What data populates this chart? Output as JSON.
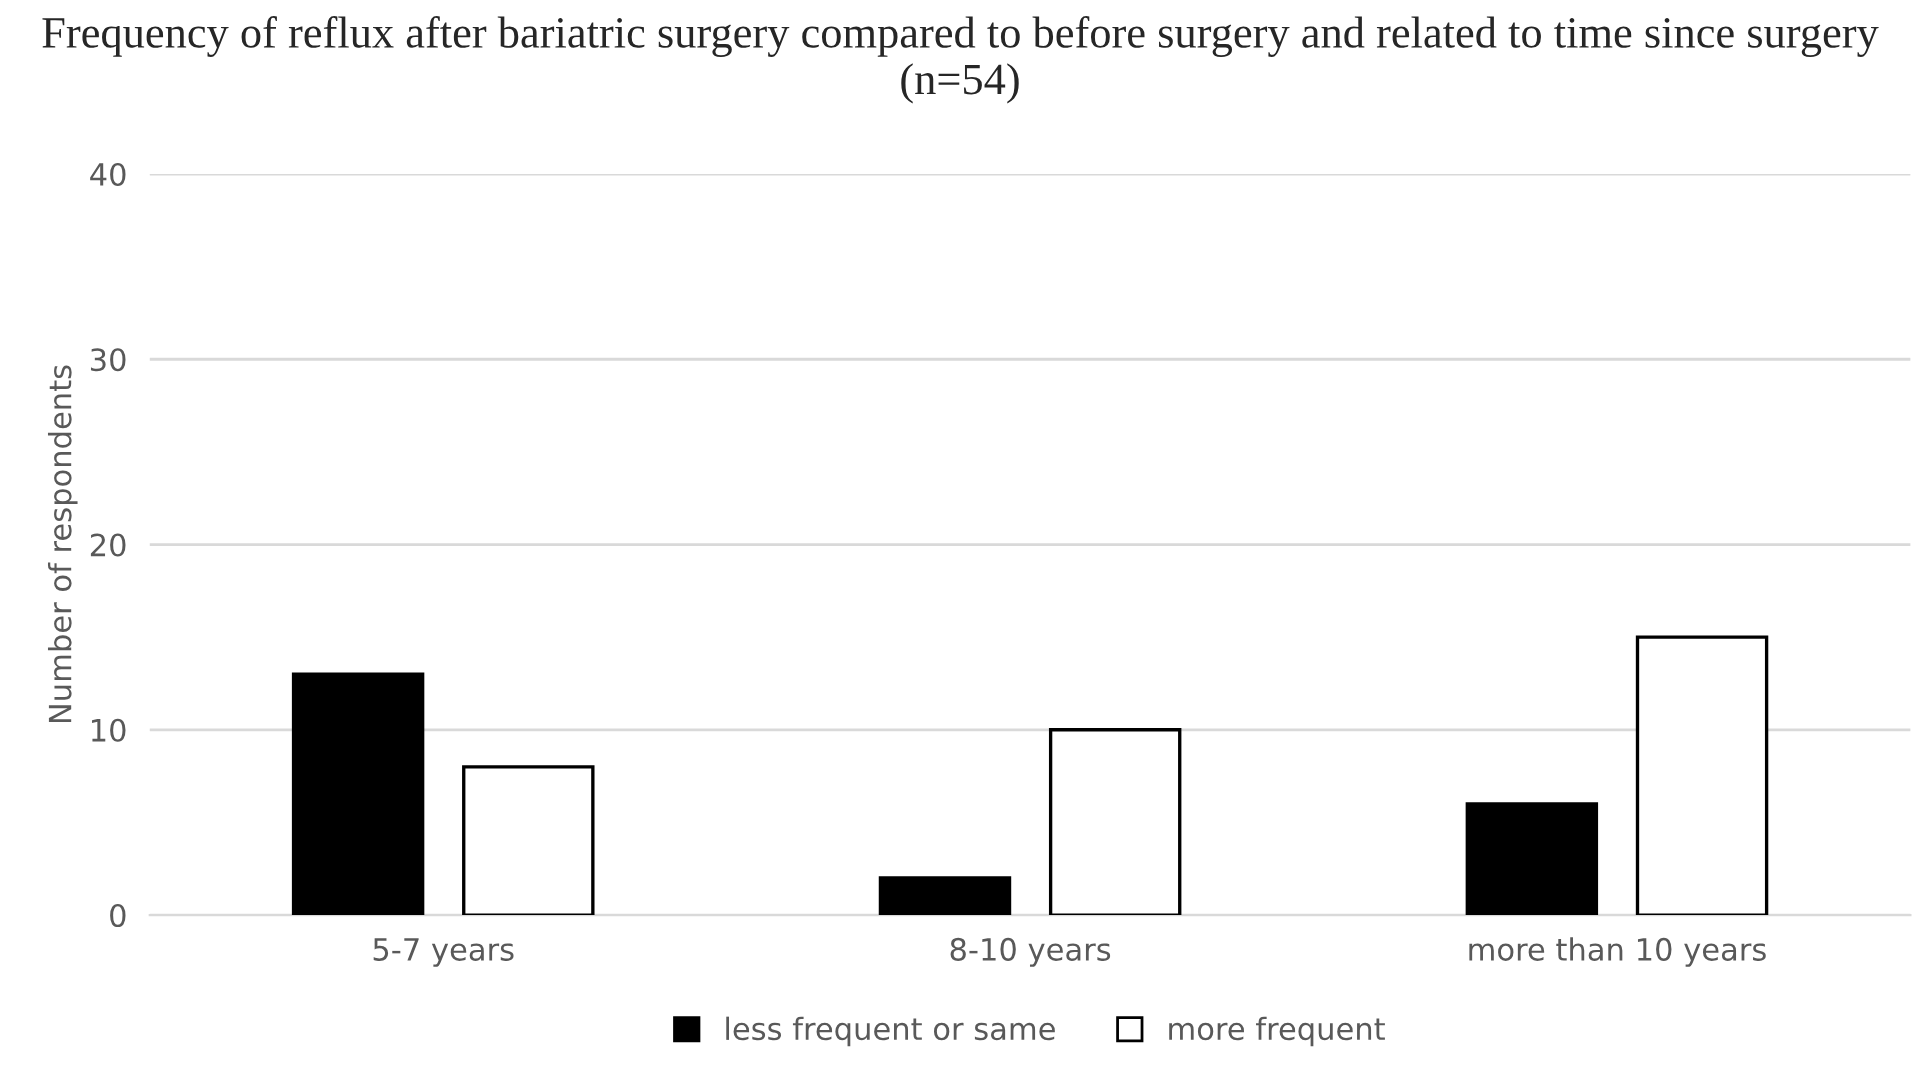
{
  "chart_data": {
    "type": "bar",
    "title": "Frequency of reflux after bariatric surgery compared to before surgery and related to time since surgery (n=54)",
    "ylabel": "Number of respondents",
    "categories": [
      "5-7 years",
      "8-10 years",
      "more than 10 years"
    ],
    "series": [
      {
        "name": "less frequent or same",
        "color": "#000000",
        "values": [
          13,
          2,
          6
        ]
      },
      {
        "name": "more frequent",
        "color": "#ffffff",
        "values": [
          8,
          10,
          15
        ]
      }
    ],
    "ylim": [
      0,
      40
    ],
    "yticks": [
      0,
      10,
      20,
      30,
      40
    ],
    "grid": "y",
    "legend": "bottom"
  }
}
